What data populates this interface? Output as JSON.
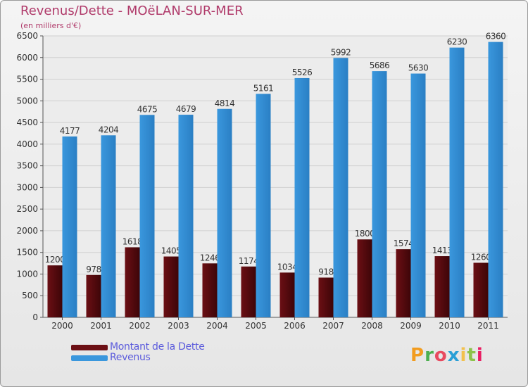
{
  "header": {
    "title": "Revenus/Dette - MOëLAN-SUR-MER",
    "subtitle": "(en milliers d'€)"
  },
  "legend": {
    "items": [
      {
        "label": "Montant de la Dette",
        "color": "#6b0f14"
      },
      {
        "label": "Revenus",
        "color": "#3a97dd"
      }
    ]
  },
  "logo": {
    "text": "Proxiti",
    "colors": [
      "#f29c1f",
      "#4caf50",
      "#e84a5f",
      "#2a9fd6",
      "#f2c14e",
      "#8bc34a",
      "#e91e63"
    ]
  },
  "chart_data": {
    "type": "bar",
    "title": "Revenus/Dette - MOëLAN-SUR-MER",
    "subtitle": "(en milliers d'€)",
    "categories": [
      "2000",
      "2001",
      "2002",
      "2003",
      "2004",
      "2005",
      "2006",
      "2007",
      "2008",
      "2009",
      "2010",
      "2011"
    ],
    "series": [
      {
        "name": "Montant de la Dette",
        "color": "#6b0f14",
        "values": [
          1200,
          978,
          1618,
          1405,
          1246,
          1174,
          1034,
          918,
          1800,
          1574,
          1413,
          1260
        ],
        "labels": [
          "1200",
          "978",
          "1618",
          "1405",
          "1246",
          "1174",
          "1034",
          "918",
          "1800",
          "1574",
          "1413",
          "1260"
        ]
      },
      {
        "name": "Revenus",
        "color": "#3a97dd",
        "values": [
          4177,
          4204,
          4675,
          4679,
          4814,
          5161,
          5526,
          5992,
          5686,
          5630,
          6230,
          6360
        ],
        "labels": [
          "4177",
          "4204",
          "4675",
          "4679",
          "4814",
          "5161",
          "5526",
          "5992",
          "5686",
          "5630",
          "6230",
          "6360"
        ]
      }
    ],
    "ylim": [
      0,
      6500
    ],
    "yticks": [
      "0",
      "500",
      "1000",
      "1500",
      "2000",
      "2500",
      "3000",
      "3500",
      "4000",
      "4500",
      "5000",
      "5500",
      "6000",
      "6500"
    ],
    "grid": true,
    "legend_position": "bottom-left"
  }
}
